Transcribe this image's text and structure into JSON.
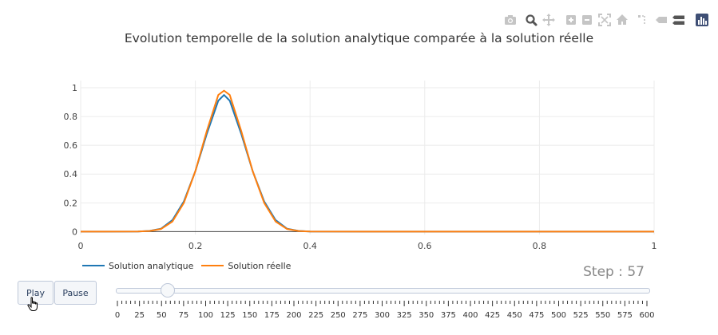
{
  "modebar": {
    "buttons": [
      {
        "name": "camera-icon",
        "title": "Download plot as a png"
      },
      {
        "name": "zoom-icon",
        "title": "Zoom"
      },
      {
        "name": "pan-icon",
        "title": "Pan"
      },
      {
        "name": "zoom-in-icon",
        "title": "Zoom in"
      },
      {
        "name": "zoom-out-icon",
        "title": "Zoom out"
      },
      {
        "name": "autoscale-icon",
        "title": "Autoscale"
      },
      {
        "name": "home-icon",
        "title": "Reset axes"
      },
      {
        "name": "spike-lines-icon",
        "title": "Toggle Spike Lines"
      },
      {
        "name": "hover-closest-icon",
        "title": "Show closest data on hover"
      },
      {
        "name": "hover-compare-icon",
        "title": "Compare data on hover"
      },
      {
        "name": "plotly-logo-icon",
        "title": "Produced with Plotly"
      }
    ]
  },
  "colors": {
    "analytique": "#1f77b4",
    "reelle": "#ff7f0e",
    "grid": "#ebebeb",
    "axis_text": "#444444"
  },
  "chart_data": {
    "type": "line",
    "title": "Evolution temporelle de la solution analytique comparée à la solution réelle",
    "xlabel": "",
    "ylabel": "",
    "xlim": [
      0,
      1
    ],
    "ylim": [
      -0.02,
      1.05
    ],
    "x_ticks": [
      0,
      0.2,
      0.4,
      0.6,
      0.8,
      1
    ],
    "x_tick_labels": [
      "0",
      "0.2",
      "0.4",
      "0.6",
      "0.8",
      "1"
    ],
    "y_ticks": [
      0,
      0.2,
      0.4,
      0.6,
      0.8,
      1
    ],
    "y_tick_labels": [
      "0",
      "0.2",
      "0.4",
      "0.6",
      "0.8",
      "1"
    ],
    "grid": true,
    "legend_position": "bottom-left",
    "series": [
      {
        "name": "Solution analytique",
        "x": [
          0,
          0.1,
          0.12,
          0.14,
          0.16,
          0.18,
          0.2,
          0.22,
          0.24,
          0.25,
          0.26,
          0.28,
          0.3,
          0.32,
          0.34,
          0.36,
          0.38,
          0.4,
          0.5,
          0.6,
          0.8,
          1
        ],
        "y": [
          0,
          0.001,
          0.005,
          0.02,
          0.08,
          0.21,
          0.42,
          0.68,
          0.91,
          0.95,
          0.91,
          0.68,
          0.42,
          0.21,
          0.08,
          0.02,
          0.005,
          0.001,
          0,
          0,
          0,
          0
        ]
      },
      {
        "name": "Solution réelle",
        "x": [
          0,
          0.1,
          0.12,
          0.14,
          0.16,
          0.18,
          0.2,
          0.22,
          0.24,
          0.25,
          0.26,
          0.28,
          0.3,
          0.32,
          0.34,
          0.36,
          0.38,
          0.4,
          0.5,
          0.6,
          0.8,
          1
        ],
        "y": [
          0,
          0.001,
          0.004,
          0.018,
          0.07,
          0.2,
          0.42,
          0.7,
          0.95,
          0.98,
          0.95,
          0.7,
          0.42,
          0.2,
          0.07,
          0.018,
          0.004,
          0.001,
          0,
          0,
          0,
          0
        ]
      }
    ]
  },
  "legend": {
    "items": [
      {
        "label": "Solution analytique"
      },
      {
        "label": "Solution réelle"
      }
    ]
  },
  "controls": {
    "play_label": "Play",
    "pause_label": "Pause"
  },
  "slider": {
    "step_label": "Step : 57",
    "current_value": 57,
    "min": 0,
    "max": 600,
    "tick_labels": [
      "0",
      "25",
      "50",
      "75",
      "100",
      "125",
      "150",
      "175",
      "200",
      "225",
      "250",
      "275",
      "300",
      "325",
      "350",
      "375",
      "400",
      "425",
      "450",
      "475",
      "500",
      "525",
      "550",
      "575",
      "600"
    ],
    "minor_tick_step": 5
  }
}
